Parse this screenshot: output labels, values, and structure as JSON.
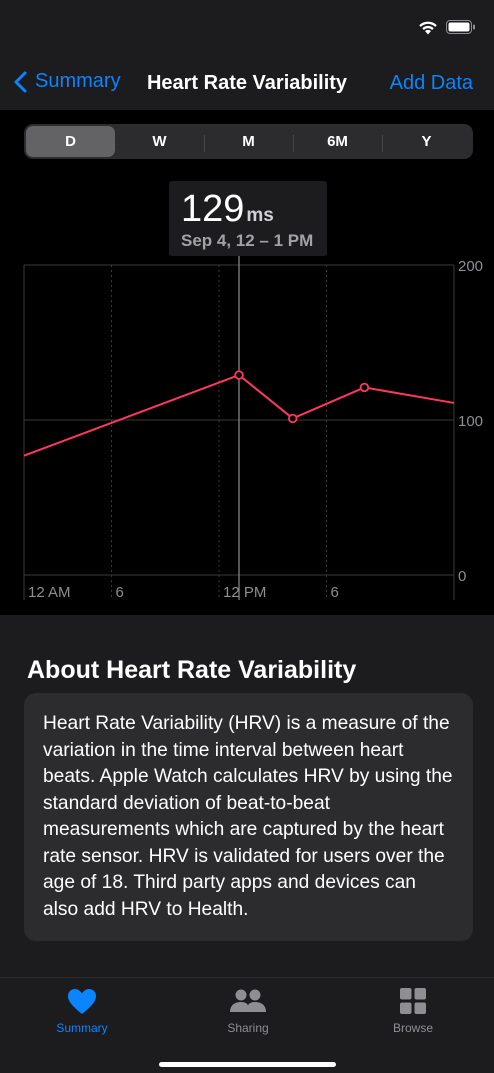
{
  "status_bar": {
    "icons": [
      "wifi-icon",
      "battery-icon"
    ]
  },
  "nav": {
    "back_label": "Summary",
    "title": "Heart Rate Variability",
    "action_label": "Add Data"
  },
  "segments": [
    "D",
    "W",
    "M",
    "6M",
    "Y"
  ],
  "selected_segment": "D",
  "tooltip": {
    "value": "129",
    "unit": "ms",
    "date": "Sep 4, 12 – 1 PM"
  },
  "chart_data": {
    "type": "line",
    "x_tick_labels": [
      "12 AM",
      "6",
      "12 PM",
      "6"
    ],
    "y_tick_labels": [
      "200",
      "100",
      "0"
    ],
    "ylim": [
      0,
      200
    ],
    "xlim": [
      0,
      24
    ],
    "series": [
      {
        "x": [
          0,
          12,
          15,
          19,
          24
        ],
        "y": [
          77,
          129,
          101,
          121,
          111
        ]
      }
    ],
    "markers_x": [
      12,
      15,
      19
    ],
    "selected_x": 12,
    "line_color": "#ff375f",
    "grid": true
  },
  "about": {
    "title": "About Heart Rate Variability",
    "body": "Heart Rate Variability (HRV) is a measure of the variation in the time interval between heart beats. Apple Watch calculates HRV by using the standard deviation of beat-to-beat measurements which are captured by the heart rate sensor. HRV is validated for users over the age of 18. Third party apps and devices can also add HRV to Health."
  },
  "tabs": [
    {
      "label": "Summary",
      "icon": "heart-icon",
      "active": true
    },
    {
      "label": "Sharing",
      "icon": "people-icon",
      "active": false
    },
    {
      "label": "Browse",
      "icon": "grid-icon",
      "active": false
    }
  ],
  "colors": {
    "accent": "#0a84ff",
    "line": "#ff375f",
    "inactive": "#8e8e93"
  }
}
